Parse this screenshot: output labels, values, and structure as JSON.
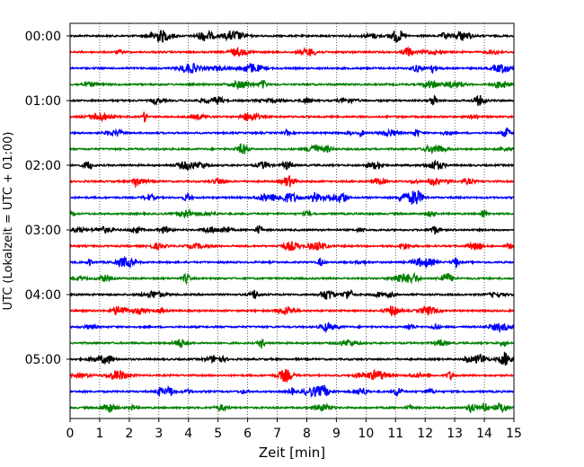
{
  "chart_data": {
    "type": "line",
    "title": "",
    "xlabel": "Zeit  [min]",
    "ylabel": "UTC (Lokalzeit = UTC + 01:00)",
    "xlim": [
      0,
      15
    ],
    "x_ticks": [
      "0",
      "1",
      "2",
      "3",
      "4",
      "5",
      "6",
      "7",
      "8",
      "9",
      "10",
      "11",
      "12",
      "13",
      "14",
      "15"
    ],
    "y_tick_labels": [
      "00:00",
      "01:00",
      "02:00",
      "03:00",
      "04:00",
      "05:00"
    ],
    "grid": "vertical dotted",
    "trace_interval_min": 15,
    "trace_colors": [
      "#000000",
      "#ff0000",
      "#0000ff",
      "#008000"
    ],
    "traces": [
      {
        "start": "00:00",
        "color": "#000000"
      },
      {
        "start": "00:15",
        "color": "#ff0000"
      },
      {
        "start": "00:30",
        "color": "#0000ff"
      },
      {
        "start": "00:45",
        "color": "#008000"
      },
      {
        "start": "01:00",
        "color": "#000000"
      },
      {
        "start": "01:15",
        "color": "#ff0000"
      },
      {
        "start": "01:30",
        "color": "#0000ff"
      },
      {
        "start": "01:45",
        "color": "#008000"
      },
      {
        "start": "02:00",
        "color": "#000000"
      },
      {
        "start": "02:15",
        "color": "#ff0000"
      },
      {
        "start": "02:30",
        "color": "#0000ff"
      },
      {
        "start": "02:45",
        "color": "#008000"
      },
      {
        "start": "03:00",
        "color": "#000000"
      },
      {
        "start": "03:15",
        "color": "#ff0000"
      },
      {
        "start": "03:30",
        "color": "#0000ff"
      },
      {
        "start": "03:45",
        "color": "#008000"
      },
      {
        "start": "04:00",
        "color": "#000000"
      },
      {
        "start": "04:15",
        "color": "#ff0000"
      },
      {
        "start": "04:30",
        "color": "#0000ff"
      },
      {
        "start": "04:45",
        "color": "#008000"
      },
      {
        "start": "05:00",
        "color": "#000000"
      },
      {
        "start": "05:15",
        "color": "#ff0000"
      },
      {
        "start": "05:30",
        "color": "#0000ff"
      },
      {
        "start": "05:45",
        "color": "#008000"
      }
    ]
  }
}
